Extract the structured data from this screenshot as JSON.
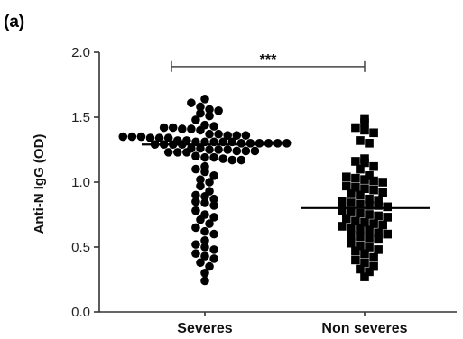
{
  "panel_label": "(a)",
  "chart_data": {
    "type": "scatter",
    "ylabel": "Anti-N IgG (OD)",
    "xlabel": "",
    "ylim": [
      0.0,
      2.0
    ],
    "yticks": [
      "0.0",
      "0.5",
      "1.0",
      "1.5",
      "2.0"
    ],
    "categories": [
      "Severes",
      "Non severes"
    ],
    "grid": false,
    "significance": {
      "label": "***",
      "between": [
        "Severes",
        "Non severes"
      ],
      "y": 1.89
    },
    "series": [
      {
        "category": "Severes",
        "marker": "circle",
        "median": 1.29,
        "values": [
          1.64,
          1.61,
          1.58,
          1.56,
          1.55,
          1.53,
          1.51,
          1.48,
          1.44,
          1.43,
          1.42,
          1.42,
          1.41,
          1.41,
          1.4,
          1.37,
          1.37,
          1.36,
          1.36,
          1.36,
          1.35,
          1.35,
          1.35,
          1.34,
          1.34,
          1.34,
          1.32,
          1.32,
          1.31,
          1.31,
          1.31,
          1.31,
          1.31,
          1.3,
          1.3,
          1.3,
          1.3,
          1.3,
          1.3,
          1.29,
          1.29,
          1.29,
          1.29,
          1.26,
          1.26,
          1.25,
          1.25,
          1.25,
          1.24,
          1.24,
          1.24,
          1.23,
          1.23,
          1.23,
          1.2,
          1.19,
          1.19,
          1.18,
          1.17,
          1.17,
          1.12,
          1.1,
          1.08,
          1.05,
          1.02,
          1.0,
          0.97,
          0.93,
          0.9,
          0.89,
          0.87,
          0.85,
          0.84,
          0.82,
          0.78,
          0.75,
          0.73,
          0.71,
          0.68,
          0.65,
          0.62,
          0.6,
          0.55,
          0.52,
          0.5,
          0.48,
          0.45,
          0.43,
          0.41,
          0.38,
          0.35,
          0.3,
          0.24
        ]
      },
      {
        "category": "Non severes",
        "marker": "square",
        "median": 0.8,
        "values": [
          1.49,
          1.46,
          1.42,
          1.4,
          1.38,
          1.32,
          1.3,
          1.18,
          1.16,
          1.15,
          1.12,
          1.1,
          1.05,
          1.04,
          1.03,
          1.02,
          1.01,
          1.0,
          0.97,
          0.96,
          0.95,
          0.94,
          0.92,
          0.91,
          0.9,
          0.87,
          0.86,
          0.85,
          0.84,
          0.83,
          0.82,
          0.82,
          0.81,
          0.78,
          0.77,
          0.76,
          0.75,
          0.74,
          0.73,
          0.72,
          0.7,
          0.69,
          0.68,
          0.67,
          0.66,
          0.65,
          0.64,
          0.63,
          0.61,
          0.6,
          0.59,
          0.58,
          0.57,
          0.56,
          0.53,
          0.51,
          0.5,
          0.48,
          0.47,
          0.45,
          0.42,
          0.4,
          0.38,
          0.35,
          0.33,
          0.31,
          0.27
        ]
      }
    ]
  }
}
